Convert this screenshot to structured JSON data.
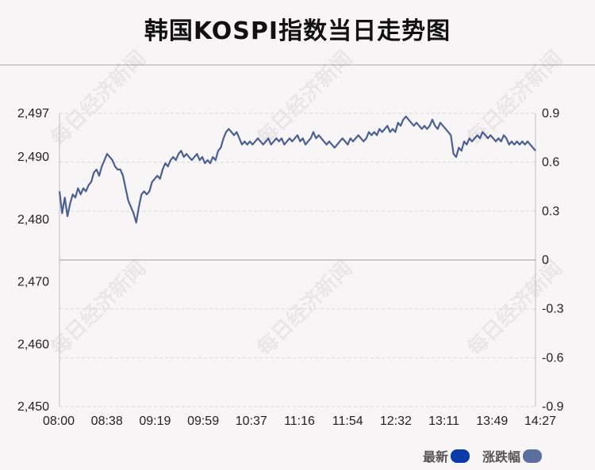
{
  "title": "韩国KOSPI指数当日走势图",
  "watermark": "每日经济新闻",
  "legend": {
    "latest": {
      "label": "最新",
      "color": "#0b3ba8"
    },
    "change": {
      "label": "涨跌幅",
      "color": "#5a6f9e"
    }
  },
  "chart_data": {
    "type": "line",
    "x_ticks": [
      "08:00",
      "08:38",
      "09:19",
      "09:59",
      "10:37",
      "11:16",
      "11:54",
      "12:32",
      "13:11",
      "13:49",
      "14:27"
    ],
    "y_left_ticks": [
      "2,497",
      "2,490",
      "2,480",
      "2,470",
      "2,460",
      "2,450"
    ],
    "y_left_values": [
      2497,
      2490,
      2480,
      2470,
      2460,
      2450
    ],
    "y_right_ticks": [
      "0.9",
      "0.6",
      "0.3",
      "0",
      "-0.3",
      "-0.6",
      "-0.9"
    ],
    "y_right_values": [
      0.9,
      0.6,
      0.3,
      0,
      -0.3,
      -0.6,
      -0.9
    ],
    "ylim": [
      2450,
      2497
    ],
    "ylim_right": [
      -0.9,
      0.9
    ],
    "grid": true,
    "series": [
      {
        "color": "#4a5f92",
        "values": [
          2484.5,
          2481,
          2483.5,
          2480.5,
          2482.5,
          2484,
          2483.5,
          2485,
          2484,
          2485,
          2484.5,
          2485.5,
          2486,
          2487.5,
          2488,
          2487,
          2488.5,
          2489.5,
          2490.5,
          2490,
          2489.5,
          2488.5,
          2488,
          2488,
          2487,
          2485,
          2483,
          2482,
          2481,
          2479.5,
          2482,
          2484,
          2484.5,
          2484,
          2484.5,
          2486,
          2486.5,
          2487,
          2486.5,
          2488,
          2489,
          2488.5,
          2489.5,
          2490,
          2489.5,
          2490.5,
          2491,
          2490,
          2490.5,
          2490,
          2489.5,
          2490,
          2490.5,
          2489.5,
          2490,
          2489,
          2489.5,
          2489,
          2490,
          2489.5,
          2491,
          2491.5,
          2493,
          2494,
          2494.5,
          2494,
          2493.5,
          2494,
          2493,
          2492,
          2492.5,
          2492,
          2492.5,
          2492,
          2492.5,
          2493,
          2492.5,
          2492,
          2492.5,
          2493,
          2492,
          2492.5,
          2493,
          2492.5,
          2493,
          2492,
          2492.5,
          2493,
          2492.5,
          2493,
          2493.5,
          2492.5,
          2493,
          2492,
          2492.5,
          2493,
          2494,
          2493,
          2493.5,
          2493,
          2492.5,
          2492,
          2492.5,
          2492,
          2491.5,
          2492,
          2492.5,
          2493,
          2492.5,
          2492,
          2493,
          2492.5,
          2493,
          2493.5,
          2493,
          2492.5,
          2493,
          2494,
          2493.5,
          2494,
          2493.5,
          2494.5,
          2494,
          2494.5,
          2495,
          2494,
          2494.5,
          2494,
          2495.5,
          2495,
          2496,
          2496.5,
          2496,
          2495.5,
          2495,
          2495.5,
          2495,
          2494.5,
          2495,
          2494.5,
          2495,
          2496,
          2495,
          2494.5,
          2495.5,
          2495,
          2494.5,
          2494,
          2493.5,
          2490.5,
          2490,
          2491.5,
          2491,
          2492.5,
          2492,
          2493,
          2492.5,
          2493,
          2493.5,
          2493,
          2494,
          2493.5,
          2493,
          2493.5,
          2493,
          2492.5,
          2493,
          2492.5,
          2493.5,
          2493,
          2492,
          2492.5,
          2492,
          2492.5,
          2492,
          2492.5,
          2492,
          2492.5,
          2492,
          2491.5,
          2491
        ]
      }
    ]
  }
}
